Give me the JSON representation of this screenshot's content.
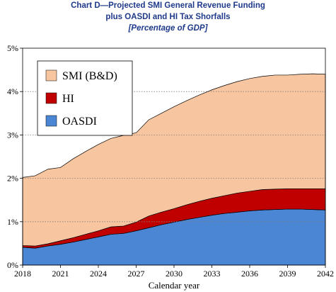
{
  "chart_data": {
    "type": "area",
    "title_line1": "Chart D—Projected SMI General Revenue Funding",
    "title_line2": "plus OASDI and HI Tax Shorfalls",
    "subtitle": "[Percentage of GDP]",
    "xlabel": "Calendar year",
    "ylabel": "",
    "stacked": true,
    "x": [
      2018,
      2019,
      2020,
      2021,
      2022,
      2023,
      2024,
      2025,
      2026,
      2027,
      2028,
      2029,
      2030,
      2031,
      2032,
      2033,
      2034,
      2035,
      2036,
      2037,
      2038,
      2039,
      2040,
      2041,
      2042
    ],
    "series": [
      {
        "name": "OASDI",
        "color": "#4a86d4",
        "values": [
          0.41,
          0.39,
          0.44,
          0.48,
          0.53,
          0.59,
          0.65,
          0.71,
          0.73,
          0.79,
          0.86,
          0.93,
          0.99,
          1.05,
          1.1,
          1.15,
          1.19,
          1.22,
          1.25,
          1.27,
          1.28,
          1.29,
          1.29,
          1.28,
          1.27
        ]
      },
      {
        "name": "HI",
        "color": "#c00000",
        "values": [
          0.04,
          0.05,
          0.05,
          0.08,
          0.1,
          0.12,
          0.14,
          0.17,
          0.17,
          0.2,
          0.27,
          0.29,
          0.31,
          0.34,
          0.37,
          0.39,
          0.41,
          0.44,
          0.45,
          0.47,
          0.47,
          0.47,
          0.47,
          0.48,
          0.49
        ]
      },
      {
        "name": "SMI (B&D)",
        "color": "#f7c59f",
        "values": [
          1.57,
          1.62,
          1.72,
          1.69,
          1.82,
          1.91,
          1.99,
          2.04,
          2.09,
          2.06,
          2.22,
          2.28,
          2.35,
          2.4,
          2.45,
          2.5,
          2.54,
          2.57,
          2.6,
          2.61,
          2.63,
          2.62,
          2.64,
          2.65,
          2.64
        ]
      }
    ],
    "ylim": [
      0,
      5
    ],
    "xlim": [
      2018,
      2042
    ],
    "yticks": [
      "0%",
      "1%",
      "2%",
      "3%",
      "4%",
      "5%"
    ],
    "xticks": [
      "2018",
      "2021",
      "2024",
      "2027",
      "2030",
      "2033",
      "2036",
      "2039",
      "2042"
    ],
    "legend": {
      "placement": "top-left",
      "order": [
        "SMI (B&D)",
        "HI",
        "OASDI"
      ]
    },
    "grid": "horizontal"
  }
}
